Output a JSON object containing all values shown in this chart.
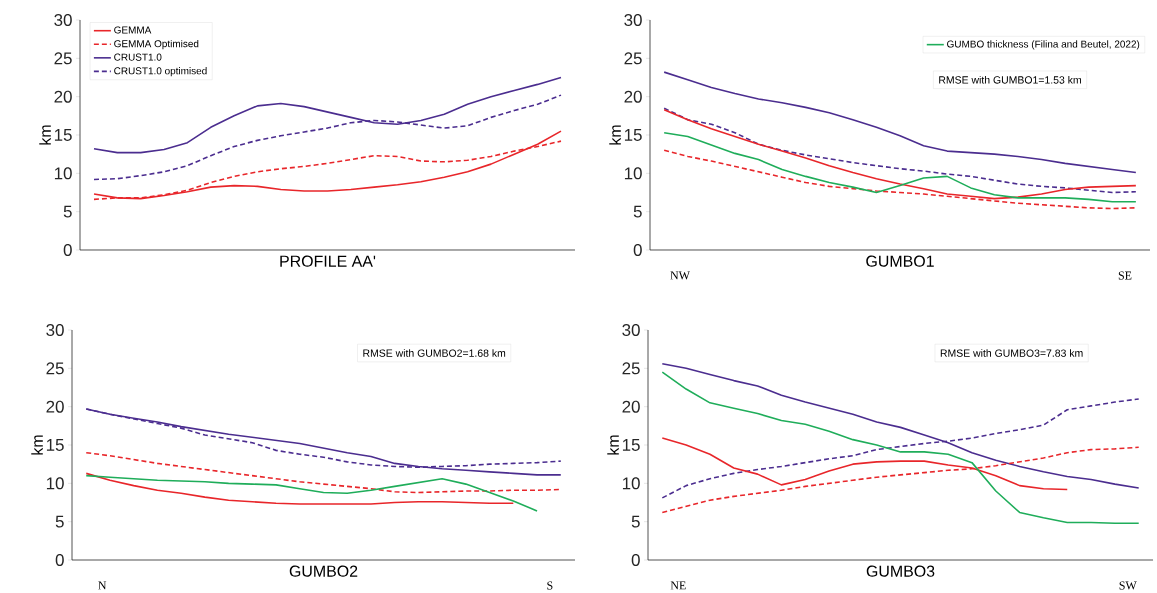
{
  "chart_data": [
    {
      "type": "line",
      "xlabel": "PROFILE AA'",
      "ylabel": "km",
      "categories": [
        null,
        null,
        null,
        null,
        null,
        null,
        null,
        null,
        null,
        null,
        null,
        null,
        null,
        null,
        null,
        null,
        null,
        null,
        null,
        null,
        null
      ],
      "ylim": [
        0,
        30
      ],
      "yticks": [
        0,
        5,
        10,
        15,
        20,
        25,
        30
      ],
      "tick_labels": "y",
      "legend": "top left",
      "series": [
        {
          "name": "GEMMA",
          "color": "#e8262a",
          "line_style": "solid",
          "values": [
            7.3,
            6.8,
            6.7,
            7.1,
            7.6,
            8.2,
            8.4,
            8.3,
            7.9,
            7.7,
            7.7,
            7.9,
            8.2,
            8.5,
            8.9,
            9.5,
            10.2,
            11.2,
            12.5,
            13.8,
            15.5
          ]
        },
        {
          "name": "GEMMA Optimised",
          "color": "#e8262a",
          "line_style": "dashed",
          "values": [
            6.6,
            6.8,
            6.8,
            7.2,
            7.8,
            8.8,
            9.6,
            10.2,
            10.6,
            10.9,
            11.3,
            11.8,
            12.3,
            12.2,
            11.6,
            11.5,
            11.7,
            12.2,
            12.9,
            13.5,
            14.2
          ]
        },
        {
          "name": "CRUST1.0",
          "color": "#4b2d8f",
          "line_style": "solid",
          "values": [
            13.2,
            12.7,
            12.7,
            13.1,
            14.0,
            16.0,
            17.5,
            18.8,
            19.1,
            18.7,
            18.0,
            17.3,
            16.6,
            16.4,
            16.9,
            17.7,
            19.0,
            20.0,
            20.8,
            21.6,
            22.5
          ]
        },
        {
          "name": "CRUST1.0 optimised",
          "color": "#4b2d8f",
          "line_style": "dashed",
          "values": [
            9.2,
            9.3,
            9.7,
            10.2,
            11.0,
            12.3,
            13.5,
            14.3,
            14.9,
            15.4,
            15.9,
            16.6,
            16.9,
            16.7,
            16.3,
            15.9,
            16.2,
            17.3,
            18.2,
            19.0,
            20.2
          ]
        }
      ]
    },
    {
      "type": "line",
      "xlabel": "GUMBO1",
      "ylabel": "km",
      "categories": [
        null,
        null,
        null,
        null,
        null,
        null,
        null,
        null,
        null,
        null,
        null,
        null,
        null,
        null,
        null,
        null,
        null,
        null,
        null,
        null,
        null
      ],
      "ylim": [
        0,
        30
      ],
      "yticks": [
        0,
        5,
        10,
        15,
        20,
        25,
        30
      ],
      "tick_labels": "y",
      "legend": "top right",
      "annotations": [
        "RMSE with GUMBO1=1.53 km",
        "NW",
        "SE"
      ],
      "series": [
        {
          "color": "#4b2d8f",
          "line_style": "solid",
          "values": [
            23.2,
            22.2,
            21.2,
            20.4,
            19.7,
            19.2,
            18.6,
            17.9,
            17.0,
            16.0,
            14.9,
            13.6,
            12.9,
            12.7,
            12.5,
            12.2,
            11.8,
            11.3,
            10.9,
            10.5,
            10.1
          ]
        },
        {
          "color": "#4b2d8f",
          "line_style": "dashed",
          "values": [
            18.5,
            17.0,
            16.4,
            15.3,
            13.8,
            13.0,
            12.4,
            11.9,
            11.4,
            11.0,
            10.6,
            10.3,
            9.9,
            9.6,
            9.1,
            8.6,
            8.3,
            8.1,
            7.8,
            7.5,
            7.6
          ]
        },
        {
          "color": "#e8262a",
          "line_style": "solid",
          "values": [
            18.3,
            17.0,
            15.8,
            14.8,
            13.8,
            12.9,
            12.0,
            11.0,
            10.1,
            9.3,
            8.6,
            8.0,
            7.3,
            7.0,
            6.7,
            6.9,
            7.3,
            7.9,
            8.2,
            8.3,
            8.4
          ]
        },
        {
          "color": "#e8262a",
          "line_style": "dashed",
          "values": [
            13.0,
            12.2,
            11.6,
            10.9,
            10.2,
            9.5,
            8.8,
            8.3,
            8.0,
            7.7,
            7.5,
            7.3,
            7.0,
            6.7,
            6.4,
            6.1,
            5.9,
            5.7,
            5.5,
            5.4,
            5.5
          ]
        },
        {
          "name": "GUMBO thickness (Filina and Beutel, 2022)",
          "color": "#1fad5a",
          "line_style": "solid",
          "values": [
            15.3,
            14.8,
            13.7,
            12.6,
            11.8,
            10.5,
            9.6,
            8.8,
            8.2,
            7.5,
            8.4,
            9.4,
            9.6,
            8.1,
            7.2,
            6.8,
            6.8,
            6.8,
            6.6,
            6.3,
            6.3
          ]
        }
      ]
    },
    {
      "type": "line",
      "xlabel": "GUMBO2",
      "ylabel": "km",
      "categories": [
        null,
        null,
        null,
        null,
        null,
        null,
        null,
        null,
        null,
        null,
        null,
        null,
        null,
        null,
        null,
        null,
        null,
        null,
        null,
        null,
        null
      ],
      "ylim": [
        0,
        30
      ],
      "yticks": [
        0,
        5,
        10,
        15,
        20,
        25,
        30
      ],
      "tick_labels": "y",
      "annotations": [
        "RMSE with GUMBO2=1.68 km",
        "N",
        "S"
      ],
      "series": [
        {
          "color": "#4b2d8f",
          "line_style": "solid",
          "values": [
            19.7,
            19.0,
            18.5,
            18.0,
            17.4,
            16.9,
            16.4,
            16.0,
            15.6,
            15.2,
            14.6,
            14.0,
            13.5,
            12.6,
            12.2,
            11.9,
            11.7,
            11.5,
            11.3,
            11.1,
            11.1
          ]
        },
        {
          "color": "#4b2d8f",
          "line_style": "dashed",
          "values": [
            19.7,
            19.0,
            18.4,
            17.8,
            17.2,
            16.3,
            15.8,
            15.3,
            14.3,
            13.8,
            13.4,
            12.8,
            12.4,
            12.2,
            12.1,
            12.2,
            12.3,
            12.5,
            12.6,
            12.7,
            12.9
          ]
        },
        {
          "color": "#e8262a",
          "line_style": "dashed",
          "values": [
            14.0,
            13.6,
            13.1,
            12.6,
            12.2,
            11.8,
            11.4,
            11.0,
            10.6,
            10.2,
            9.9,
            9.6,
            9.3,
            8.9,
            8.8,
            8.9,
            9.0,
            9.0,
            9.1,
            9.1,
            9.2
          ]
        },
        {
          "color": "#e8262a",
          "line_style": "solid",
          "values": [
            11.3,
            10.4,
            9.7,
            9.1,
            8.7,
            8.2,
            7.8,
            7.6,
            7.4,
            7.3,
            7.3,
            7.3,
            7.3,
            7.5,
            7.6,
            7.6,
            7.5,
            7.4,
            7.4,
            null,
            null
          ]
        },
        {
          "color": "#1fad5a",
          "line_style": "solid",
          "values": [
            11.0,
            10.8,
            10.6,
            10.4,
            10.3,
            10.2,
            10.0,
            9.9,
            9.8,
            9.3,
            8.8,
            8.7,
            9.1,
            9.6,
            10.1,
            10.6,
            9.9,
            8.8,
            7.7,
            6.4,
            null
          ]
        }
      ]
    },
    {
      "type": "line",
      "xlabel": "GUMBO3",
      "ylabel": "km",
      "categories": [
        null,
        null,
        null,
        null,
        null,
        null,
        null,
        null,
        null,
        null,
        null,
        null,
        null,
        null,
        null,
        null,
        null,
        null,
        null,
        null,
        null
      ],
      "ylim": [
        0,
        30
      ],
      "yticks": [
        0,
        5,
        10,
        15,
        20,
        25,
        30
      ],
      "tick_labels": "y",
      "annotations": [
        "RMSE with GUMBO3=7.83 km",
        "NE",
        "SW"
      ],
      "series": [
        {
          "color": "#4b2d8f",
          "line_style": "solid",
          "values": [
            25.6,
            25.0,
            24.2,
            23.4,
            22.7,
            21.5,
            20.6,
            19.8,
            19.0,
            18.0,
            17.3,
            16.3,
            15.3,
            14.0,
            13.0,
            12.2,
            11.5,
            10.9,
            10.5,
            9.9,
            9.4
          ]
        },
        {
          "color": "#4b2d8f",
          "line_style": "dashed",
          "values": [
            8.1,
            9.7,
            10.6,
            11.3,
            11.8,
            12.2,
            12.7,
            13.2,
            13.6,
            14.4,
            14.8,
            15.2,
            15.5,
            15.9,
            16.5,
            17.0,
            17.6,
            19.6,
            20.1,
            20.6,
            21.0
          ]
        },
        {
          "color": "#e8262a",
          "line_style": "solid",
          "values": [
            15.9,
            15.0,
            13.8,
            12.0,
            11.2,
            9.8,
            10.5,
            11.6,
            12.5,
            12.8,
            12.9,
            12.9,
            12.4,
            12.0,
            11.0,
            9.7,
            9.3,
            9.2,
            null,
            null,
            null
          ]
        },
        {
          "color": "#e8262a",
          "line_style": "dashed",
          "values": [
            6.2,
            7.0,
            7.8,
            8.3,
            8.7,
            9.1,
            9.6,
            10.0,
            10.4,
            10.8,
            11.1,
            11.4,
            11.7,
            11.9,
            12.3,
            12.8,
            13.3,
            14.0,
            14.4,
            14.5,
            14.7
          ]
        },
        {
          "color": "#1fad5a",
          "line_style": "solid",
          "values": [
            24.5,
            22.3,
            20.5,
            19.8,
            19.1,
            18.2,
            17.7,
            16.8,
            15.7,
            15.0,
            14.1,
            14.1,
            13.8,
            12.7,
            9.0,
            6.2,
            5.5,
            4.9,
            4.9,
            4.8,
            4.8
          ]
        }
      ]
    }
  ]
}
